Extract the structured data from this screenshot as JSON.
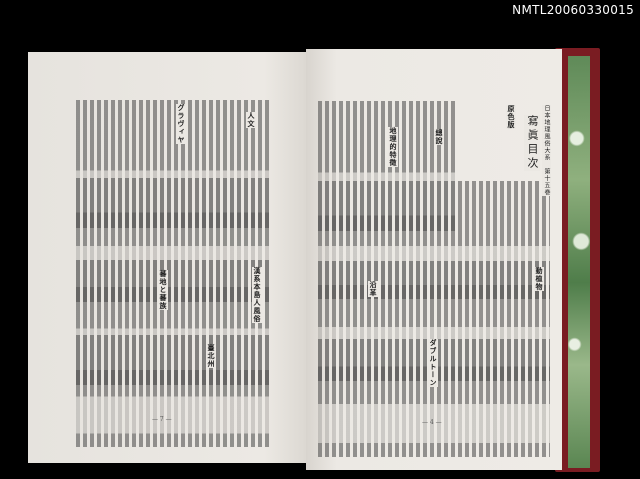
{
  "watermark": "NMTL20060330015",
  "right_page": {
    "series_title": "日本地理風俗大系　第十五巻",
    "title": "寫眞目次",
    "sections": [
      "原色版",
      "總說",
      "地理的特徵",
      "動植物",
      "沿革",
      "ダブルトーン"
    ],
    "page_number": "— 4 —"
  },
  "left_page": {
    "sections": [
      "人文",
      "グラヴィヤ",
      "漢系本島人風俗",
      "蕃地と蕃族",
      "臺北州"
    ],
    "page_number": "— 7 —"
  },
  "colors": {
    "page": "#ebe8e3",
    "cover": "#7a1c22",
    "background": "#000000"
  }
}
